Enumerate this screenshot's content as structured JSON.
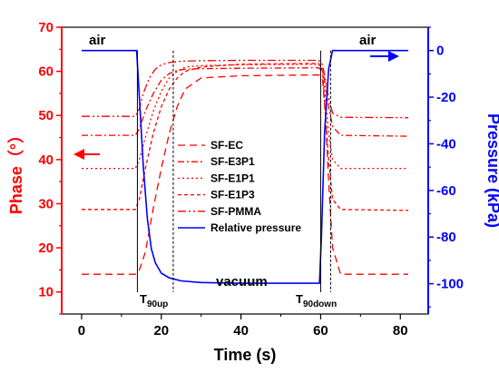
{
  "chart_data": {
    "type": "line",
    "xlabel": "Time (s)",
    "ylabel_left": "Phase（°）",
    "ylabel_right": "Pressure (kPa)",
    "xlim": [
      -5,
      87
    ],
    "ylim_left": [
      5,
      70
    ],
    "ylim_right": [
      -113,
      10
    ],
    "x_ticks": [
      0,
      20,
      40,
      60,
      80
    ],
    "y_left_ticks": [
      10,
      20,
      30,
      40,
      50,
      60,
      70
    ],
    "y_right_ticks": [
      0,
      -20,
      -40,
      -60,
      -80,
      -100
    ],
    "colors": {
      "phase": "#ff0000",
      "pressure": "#0000ff",
      "marker": "#000000"
    },
    "series": [
      {
        "name": "SF-EC",
        "axis": "left",
        "dash": "8,5",
        "x": [
          0,
          13.5,
          14.5,
          16,
          18,
          20,
          22,
          24,
          26,
          30,
          40,
          59.5,
          60.5,
          61.2,
          62,
          63,
          65,
          82
        ],
        "y": [
          14,
          14,
          15,
          19,
          29,
          38,
          46,
          52,
          56,
          58.5,
          59,
          59.2,
          58,
          50,
          35,
          20,
          14,
          14
        ]
      },
      {
        "name": "SF-E3P1",
        "axis": "left",
        "dash": "7,3,2,3",
        "x": [
          0,
          13.5,
          14.5,
          16,
          18,
          20,
          22,
          24,
          26,
          30,
          40,
          59.5,
          60.5,
          61.2,
          62,
          63,
          65,
          82
        ],
        "y": [
          45.5,
          45.5,
          47,
          51,
          55,
          58,
          59.5,
          60.2,
          60.5,
          60.6,
          60.7,
          60.8,
          60,
          57,
          52,
          47.5,
          45.5,
          45.3
        ]
      },
      {
        "name": "SF-E1P1",
        "axis": "left",
        "dash": "2,3",
        "x": [
          0,
          13.5,
          14.5,
          16,
          18,
          20,
          22,
          24,
          26,
          30,
          40,
          59.5,
          60.5,
          61.2,
          62,
          63,
          65,
          82
        ],
        "y": [
          38,
          38,
          40,
          45,
          51,
          55.5,
          58.5,
          60,
          61,
          61.3,
          61.5,
          61.6,
          60.5,
          54,
          46,
          40,
          38,
          38
        ]
      },
      {
        "name": "SF-E1P3",
        "axis": "left",
        "dash": "4,3",
        "x": [
          0,
          13.5,
          14.5,
          16,
          18,
          20,
          22,
          24,
          26,
          30,
          40,
          59.5,
          60.5,
          61.2,
          62,
          63,
          65,
          82
        ],
        "y": [
          28.7,
          28.7,
          31,
          38,
          46,
          52,
          56,
          58.5,
          60,
          61,
          61.6,
          61.8,
          60,
          50,
          40,
          31,
          28.7,
          28.5
        ]
      },
      {
        "name": "SF-PMMA",
        "axis": "left",
        "dash": "9,3,2,3,2,3",
        "x": [
          0,
          13.5,
          14.5,
          15.5,
          17,
          18.5,
          20,
          22,
          25,
          30,
          40,
          59.5,
          60.5,
          61.2,
          62,
          63,
          65,
          82
        ],
        "y": [
          49.8,
          49.8,
          51.5,
          55,
          58.5,
          60.5,
          61.5,
          62,
          62.3,
          62.4,
          62.5,
          62.5,
          61.5,
          58,
          54,
          50.5,
          49.6,
          49.5
        ]
      },
      {
        "name": "Relative pressure",
        "axis": "right",
        "dash": "",
        "x": [
          0,
          13.8,
          14.5,
          15.5,
          16.5,
          17.5,
          18.5,
          20,
          22,
          25,
          30,
          40,
          59.7,
          60.2,
          61,
          62,
          63,
          82
        ],
        "y": [
          0,
          0,
          -20,
          -50,
          -72,
          -85,
          -91,
          -95.5,
          -97.5,
          -98.8,
          -99.5,
          -99.8,
          -99.8,
          -80,
          -35,
          -8,
          0,
          0
        ]
      }
    ],
    "markers": {
      "x": [
        14,
        23,
        60,
        62.5
      ],
      "left_label": "T",
      "left_sub": "90up",
      "right_label": "T",
      "right_sub": "90down"
    },
    "annotations": {
      "air_left": "air",
      "air_right": "air",
      "vacuum": "vacuum"
    }
  }
}
